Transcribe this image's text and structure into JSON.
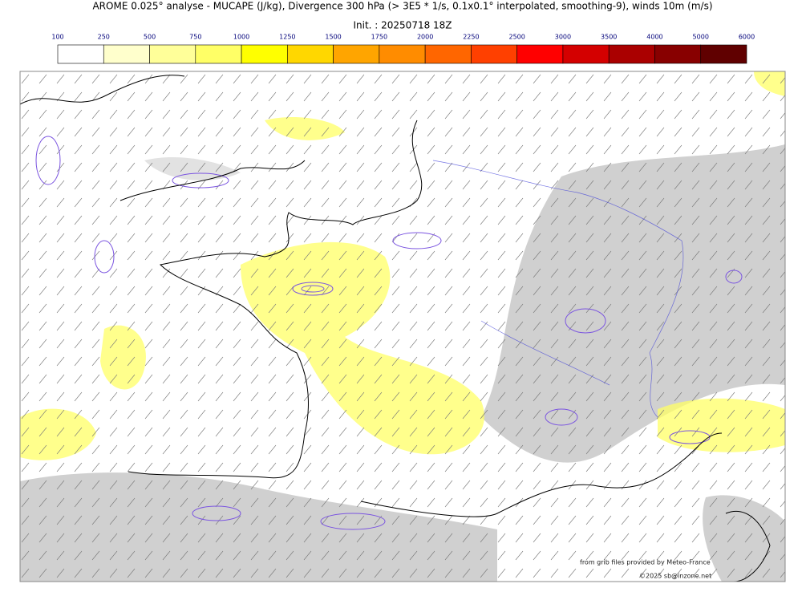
{
  "header": {
    "title": "AROME 0.025° analyse - MUCAPE (J/kg), Divergence 300 hPa (> 3E5 * 1/s, 0.1x0.1° interpolated, smoothing-9), winds 10m (m/s)",
    "init": "Init. : 20250718 18Z"
  },
  "colorbar": {
    "levels": [
      100,
      250,
      500,
      750,
      1000,
      1250,
      1500,
      1750,
      2000,
      2250,
      2500,
      3000,
      3500,
      4000,
      5000,
      6000
    ],
    "colors": [
      "#ffffff",
      "#ffffcc",
      "#ffff99",
      "#ffff66",
      "#ffff00",
      "#ffd700",
      "#ffa500",
      "#ff8c00",
      "#ff6600",
      "#ff4000",
      "#ff0000",
      "#d40000",
      "#aa0000",
      "#880000",
      "#600000"
    ]
  },
  "credits": [
    "from grib files provided by Meteo-France",
    "©2025 sb@inzone.net"
  ]
}
